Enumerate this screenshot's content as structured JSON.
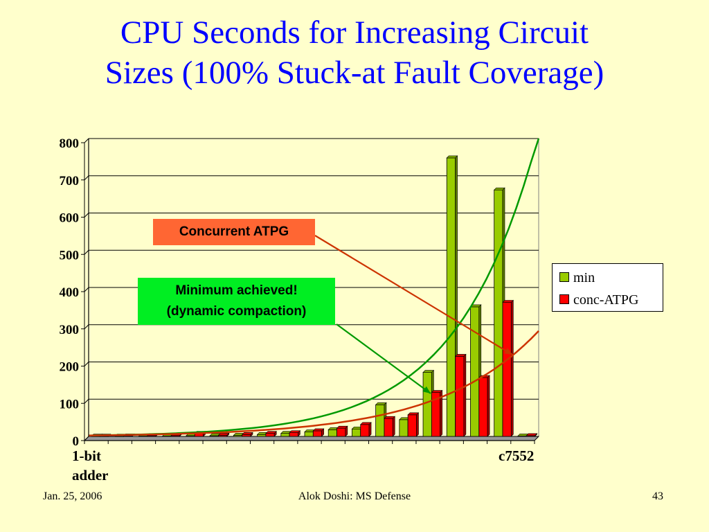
{
  "slide": {
    "title_line1": "CPU Seconds for Increasing Circuit",
    "title_line2": "Sizes (100% Stuck-at Fault Coverage)",
    "footer_left": "Jan. 25, 2006",
    "footer_center": "Alok Doshi: MS Defense",
    "footer_right": "43"
  },
  "callouts": {
    "concurrent": "Concurrent ATPG",
    "minimum_line1": "Minimum achieved!",
    "minimum_line2": "(dynamic compaction)"
  },
  "chart_data": {
    "type": "bar",
    "categories": [
      "1-bit adder",
      "",
      "",
      "",
      "",
      "",
      "",
      "",
      "",
      "",
      "",
      "",
      "",
      "",
      "",
      "",
      "",
      "",
      "c7552"
    ],
    "x_label_first_line1": "1-bit",
    "x_label_first_line2": "adder",
    "x_label_last": "c7552",
    "series": [
      {
        "name": "min",
        "color": "#99cc00",
        "values": [
          0.5,
          0.5,
          1,
          1,
          2,
          2,
          3,
          5,
          8,
          12,
          18,
          20,
          85,
          45,
          172,
          748,
          348,
          662,
          1
        ]
      },
      {
        "name": "conc-ATPG",
        "color": "#ff0000",
        "values": [
          0.5,
          1,
          2,
          2,
          8,
          3,
          5,
          8,
          10,
          15,
          22,
          32,
          48,
          58,
          118,
          215,
          158,
          360,
          2
        ]
      }
    ],
    "ylim": [
      0,
      800
    ],
    "yticks": [
      0,
      100,
      200,
      300,
      400,
      500,
      600,
      700,
      800
    ],
    "grid": true,
    "legend_position": "right",
    "trendline_colors": {
      "min": "#009900",
      "conc-ATPG": "#cc3300"
    },
    "arrow_colors": {
      "concurrent": "#cc3300",
      "minimum": "#009900"
    }
  }
}
